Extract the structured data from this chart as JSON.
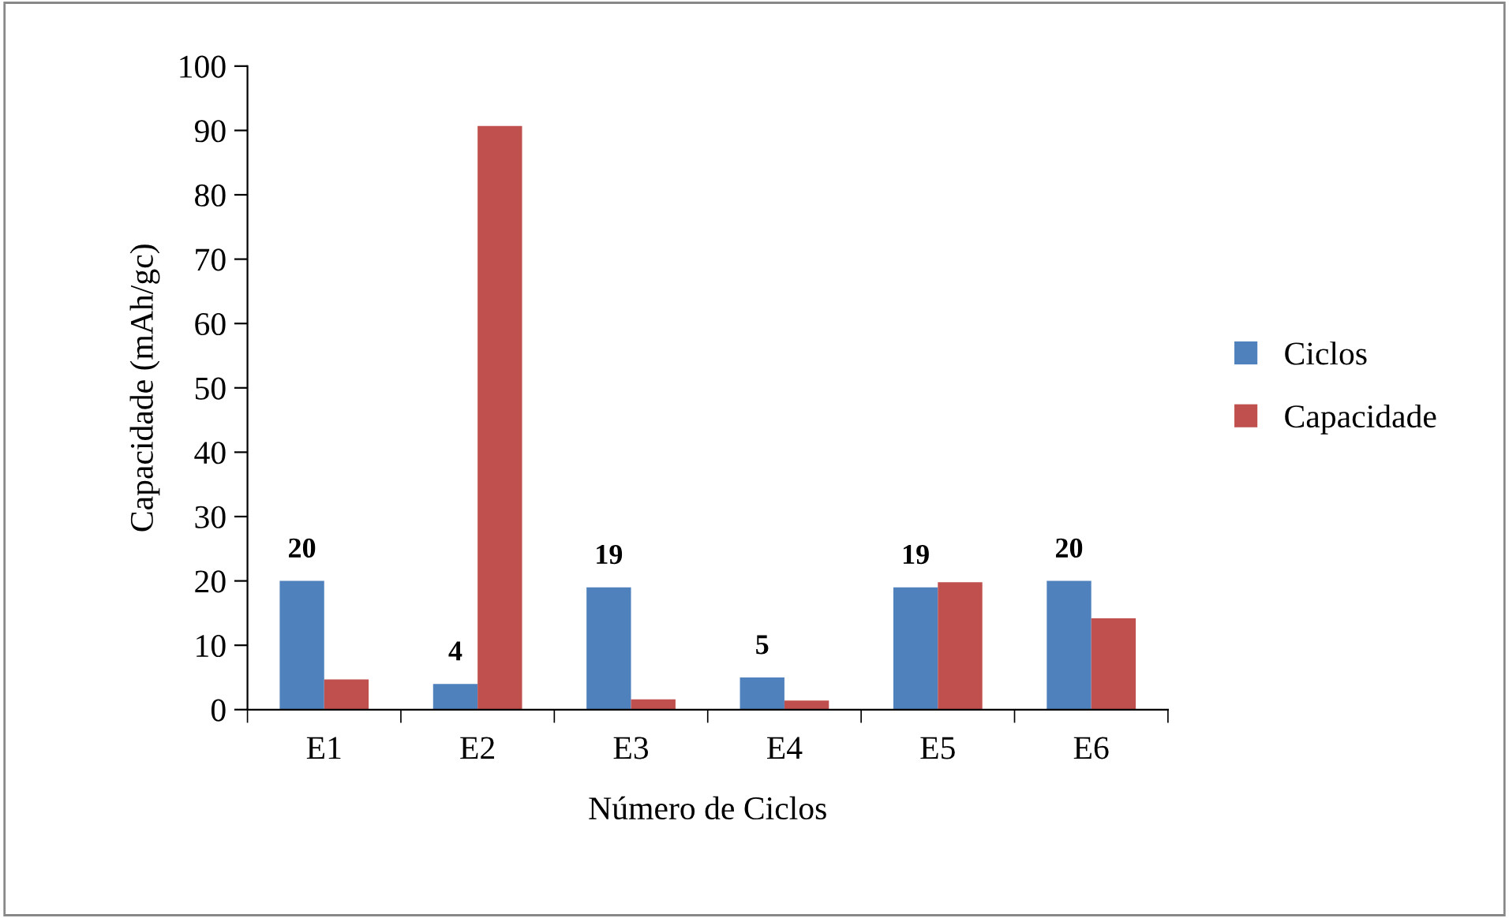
{
  "chart_data": {
    "type": "bar",
    "xlabel": "Número de Ciclos",
    "ylabel": "Capacidade (mAh/gc)",
    "categories": [
      "E1",
      "E2",
      "E3",
      "E4",
      "E5",
      "E6"
    ],
    "series": [
      {
        "name": "Ciclos",
        "color": "#4f81bd",
        "values": [
          20,
          4,
          19,
          5,
          19,
          20
        ],
        "value_labels": [
          "20",
          "4",
          "19",
          "5",
          "19",
          "20"
        ]
      },
      {
        "name": "Capacidade",
        "color": "#c0504d",
        "values": [
          4.7,
          90.7,
          1.6,
          1.4,
          19.8,
          14.2
        ]
      }
    ],
    "ylim": [
      0,
      100
    ],
    "yticks": [
      0,
      10,
      20,
      30,
      40,
      50,
      60,
      70,
      80,
      90,
      100
    ],
    "grid": false,
    "legend": "right"
  }
}
